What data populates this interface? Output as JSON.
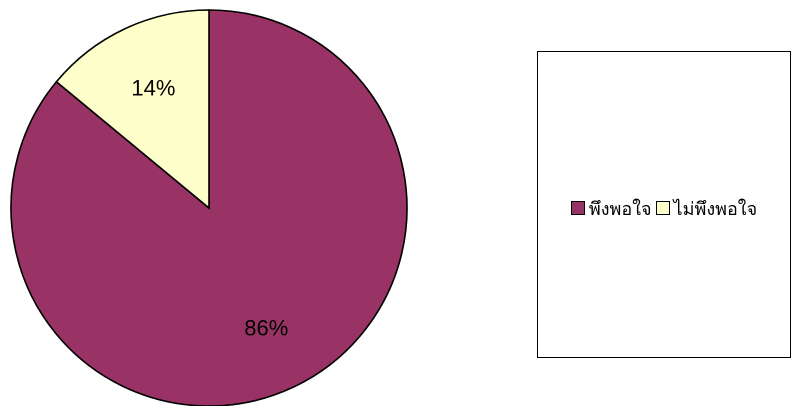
{
  "chart_data": {
    "type": "pie",
    "categories": [
      "พึงพอใจ",
      "ไม่พึงพอใจ"
    ],
    "values": [
      86,
      14
    ],
    "labels": [
      "86%",
      "14%"
    ],
    "colors": [
      "#993366",
      "#FFFFCC"
    ],
    "title": "",
    "legend_position": "right",
    "start_angle": "12 o'clock",
    "direction": "clockwise"
  },
  "legend": {
    "items": [
      {
        "label": "พึงพอใจ",
        "color": "#993366"
      },
      {
        "label": "ไม่พึงพอใจ",
        "color": "#FFFFCC"
      }
    ]
  }
}
